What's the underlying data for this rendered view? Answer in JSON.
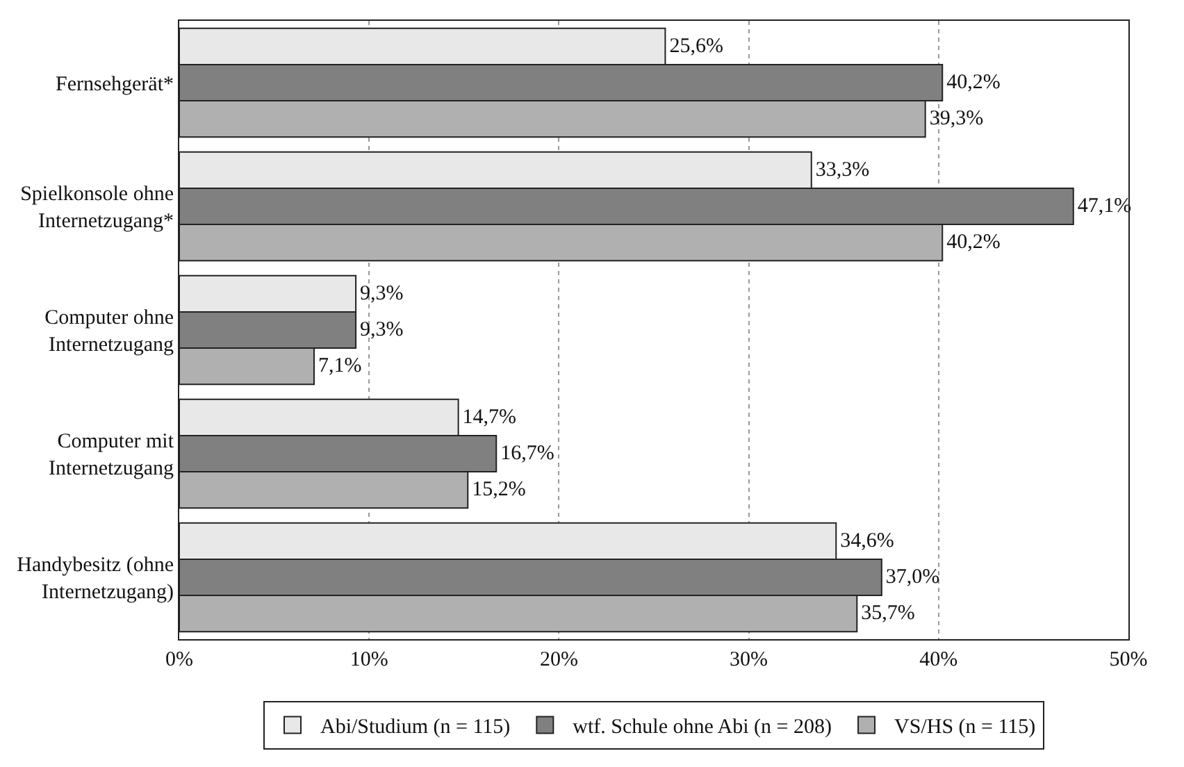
{
  "chart_data": {
    "type": "bar",
    "orientation": "horizontal",
    "categories": [
      "Fernsehgerät*",
      "Spielkonsole ohne\nInternetzugang*",
      "Computer ohne\nInternetzugang",
      "Computer mit\nInternetzugang",
      "Handybesitz (ohne\nInternetzugang)"
    ],
    "series": [
      {
        "name": "Abi/Studium (n = 115)",
        "color": "#e8e8e8",
        "values": [
          25.6,
          33.3,
          9.3,
          14.7,
          34.6
        ],
        "value_labels": [
          "25,6%",
          "33,3%",
          "9,3%",
          "14,7%",
          "34,6%"
        ]
      },
      {
        "name": "wtf. Schule ohne Abi (n = 208)",
        "color": "#808080",
        "values": [
          40.2,
          47.1,
          9.3,
          16.7,
          37.0
        ],
        "value_labels": [
          "40,2%",
          "47,1%",
          "9,3%",
          "16,7%",
          "37,0%"
        ]
      },
      {
        "name": "VS/HS (n = 115)",
        "color": "#b0b0b0",
        "values": [
          39.3,
          40.2,
          7.1,
          15.2,
          35.7
        ],
        "value_labels": [
          "39,3%",
          "40,2%",
          "7,1%",
          "15,2%",
          "35,7%"
        ]
      }
    ],
    "xlim": [
      0,
      50
    ],
    "xticks": [
      {
        "value": 0,
        "label": "0%"
      },
      {
        "value": 10,
        "label": "10%"
      },
      {
        "value": 20,
        "label": "20%"
      },
      {
        "value": 30,
        "label": "30%"
      },
      {
        "value": 40,
        "label": "40%"
      },
      {
        "value": 50,
        "label": "50%"
      }
    ],
    "grid": "x",
    "legend": "bottom"
  }
}
